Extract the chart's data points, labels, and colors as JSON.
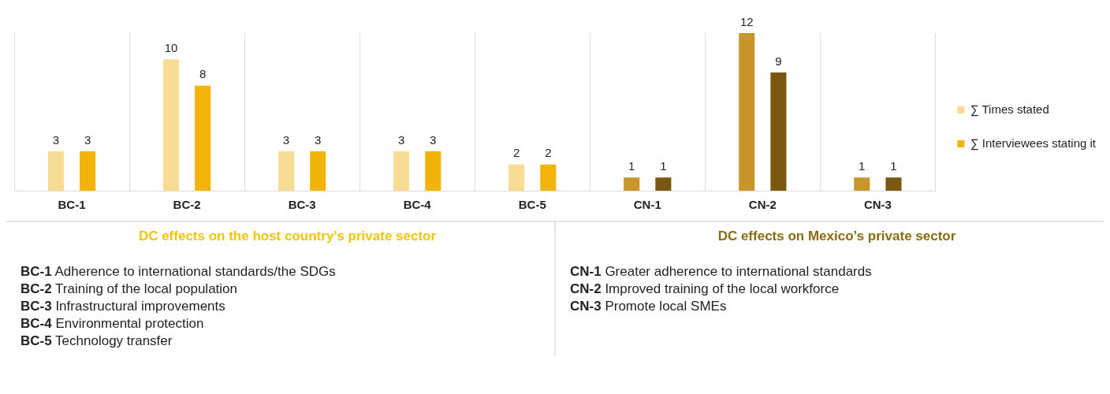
{
  "chart_data": [
    {
      "type": "bar",
      "categories": [
        "BC-1",
        "BC-2",
        "BC-3",
        "BC-4",
        "BC-5",
        "CN-1",
        "CN-2",
        "CN-3"
      ],
      "series": [
        {
          "name": "∑ Times stated",
          "color": "#f8dc94",
          "colors": [
            "#f8dc94",
            "#f8dc94",
            "#f8dc94",
            "#f8dc94",
            "#f8dc94",
            "#c8962a",
            "#c8962a",
            "#c8962a"
          ],
          "values": [
            3,
            10,
            3,
            3,
            2,
            1,
            12,
            1
          ]
        },
        {
          "name": "∑ Interviewees stating it",
          "color": "#f2b40a",
          "colors": [
            "#f2b40a",
            "#f2b40a",
            "#f2b40a",
            "#f2b40a",
            "#f2b40a",
            "#7a5810",
            "#7a5810",
            "#7a5810"
          ],
          "values": [
            3,
            8,
            3,
            3,
            2,
            1,
            9,
            1
          ]
        }
      ],
      "data_labels": true,
      "grid": "x",
      "legend": "right"
    },
    {
      "type": "other",
      "title": "DC effects on the host country’s private sector",
      "color": "#f2c40a",
      "annotations": [
        "BC-1 Adherence to international standards/the SDGs",
        "BC-2 Training of the local population",
        "BC-3 Infrastructural improvements",
        "BC-4 Environmental protection",
        "BC-5 Technology transfer"
      ]
    },
    {
      "type": "other",
      "title": "DC effects on Mexico’s private sector",
      "color": "#8a6a10",
      "annotations": [
        "CN-1 Greater adherence to international standards",
        "CN-2 Improved training of the local workforce",
        "CN-3 Promote local SMEs"
      ]
    }
  ]
}
